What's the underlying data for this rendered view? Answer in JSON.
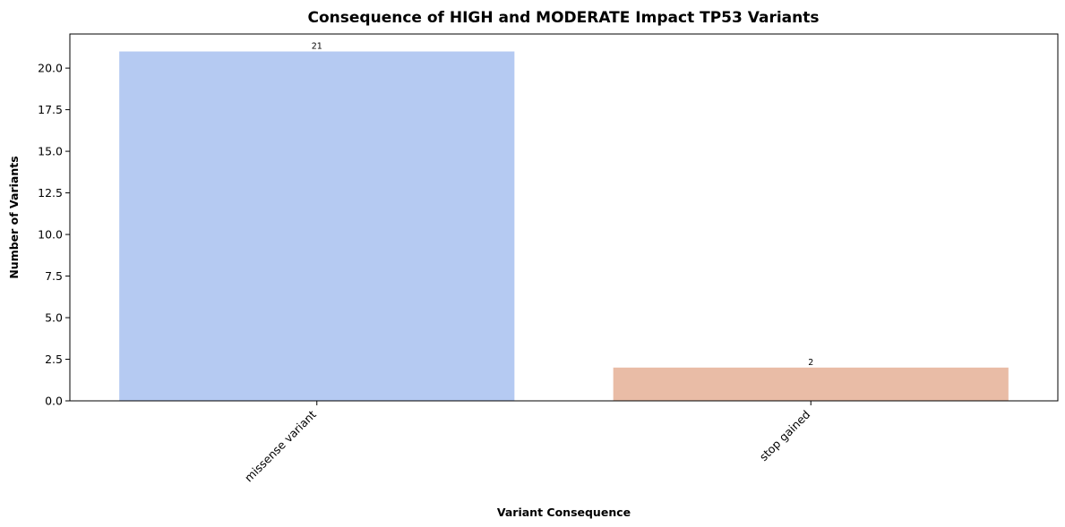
{
  "chart_data": {
    "type": "bar",
    "title": "Consequence of HIGH and MODERATE Impact TP53 Variants",
    "xlabel": "Variant Consequence",
    "ylabel": "Number of Variants",
    "categories": [
      "missense variant",
      "stop gained"
    ],
    "values": [
      21,
      2
    ],
    "data_labels": [
      "21",
      "2"
    ],
    "colors": [
      "#b5caf2",
      "#e9bca6"
    ],
    "ylim": [
      0,
      22.05
    ],
    "yticks": [
      0,
      2.5,
      5,
      7.5,
      10,
      12.5,
      15,
      17.5,
      20
    ],
    "ytick_labels": [
      "0.0",
      "2.5",
      "5.0",
      "7.5",
      "10.0",
      "12.5",
      "15.0",
      "17.5",
      "20.0"
    ],
    "grid": false,
    "legend": "none"
  }
}
